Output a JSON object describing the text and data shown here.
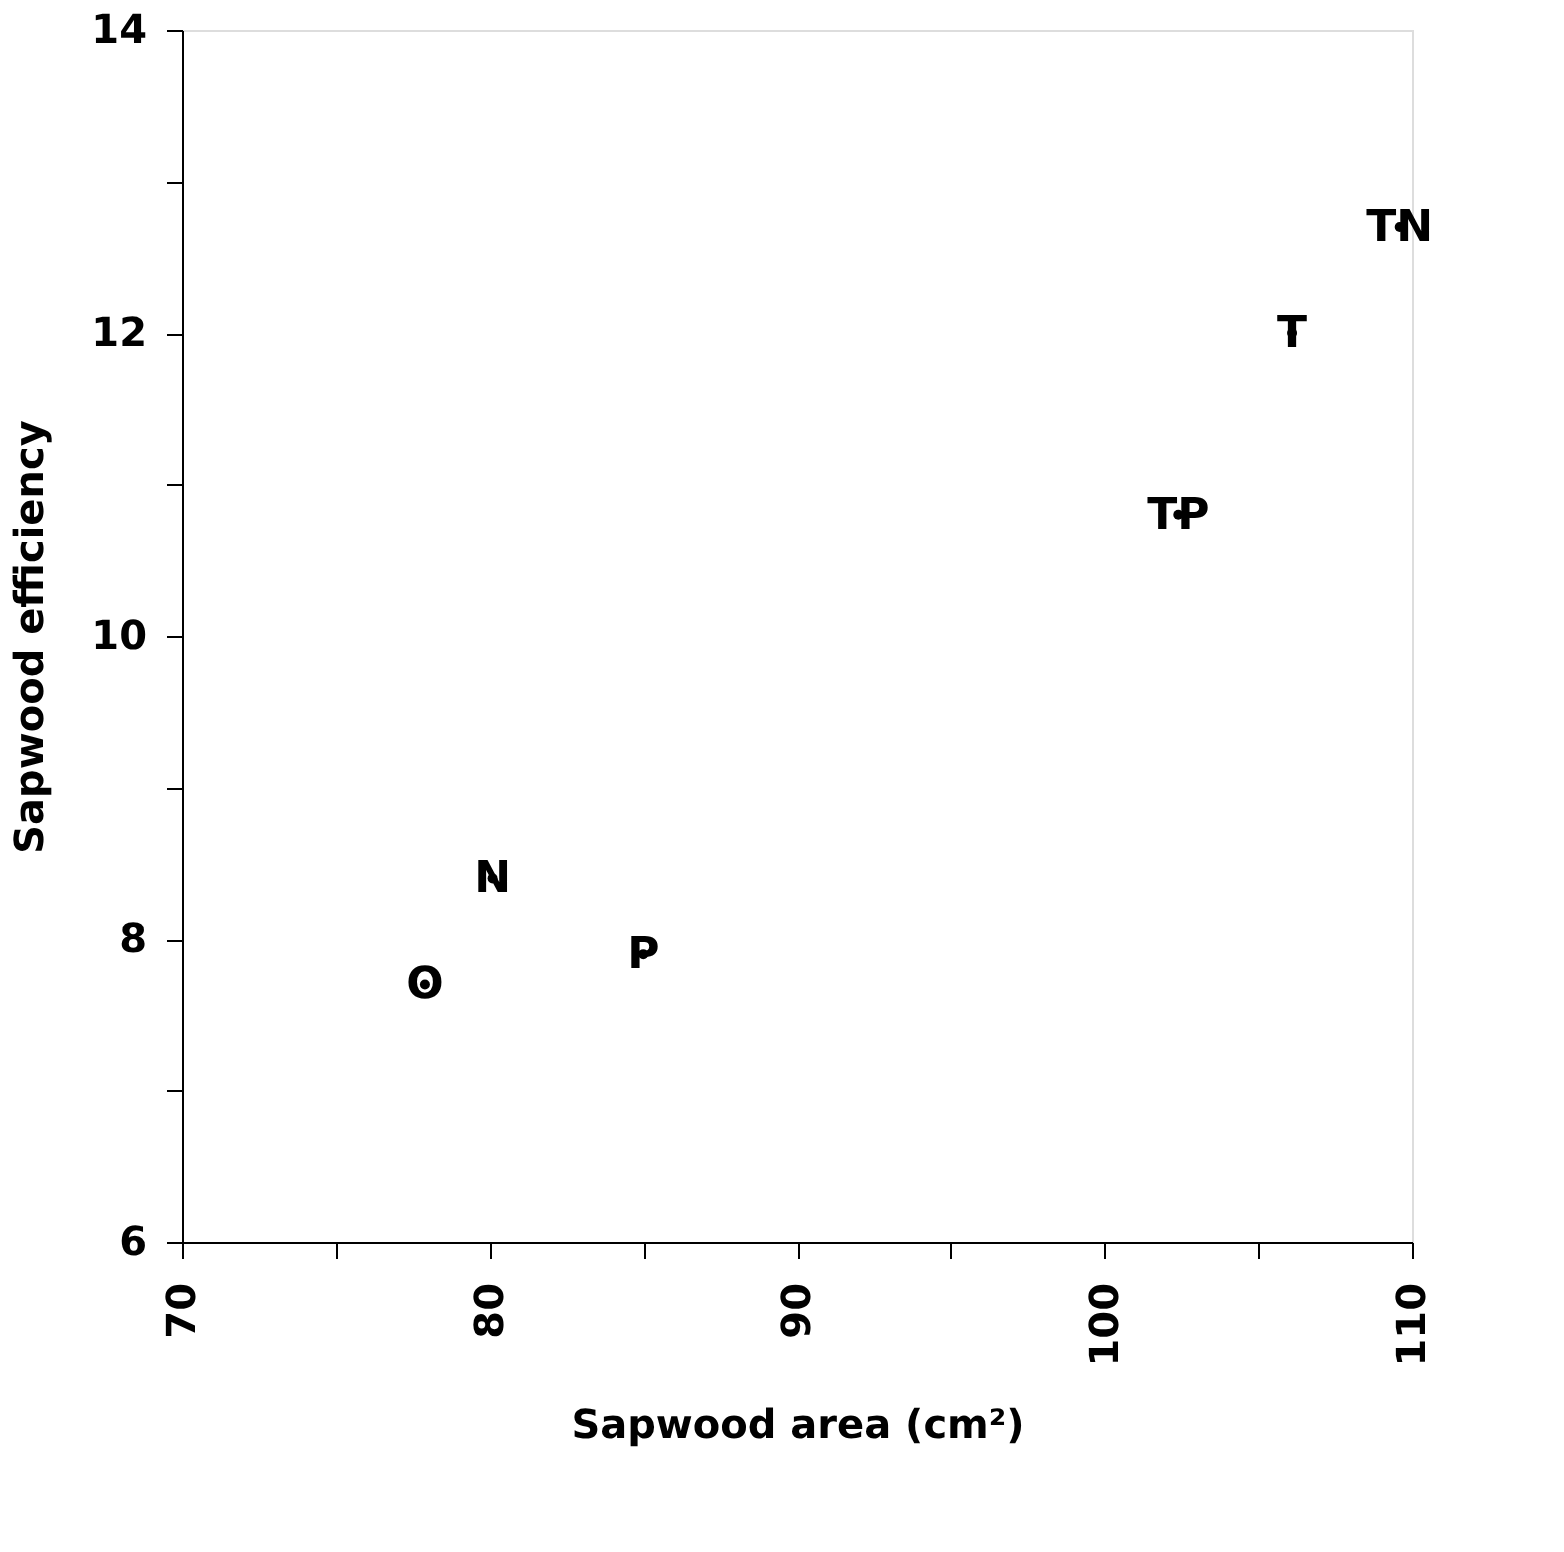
{
  "chart_data": {
    "type": "scatter",
    "xlabel": "Sapwood area (cm²)",
    "ylabel": "Sapwood efficiency",
    "x": [
      77.9,
      80.1,
      85.0,
      102.4,
      106.1,
      109.6
    ],
    "values": [
      7.7,
      8.4,
      7.9,
      10.8,
      12.0,
      12.7
    ],
    "value_labels": [
      "O",
      "N",
      "P",
      "TP",
      "T",
      "TN"
    ],
    "marker": "circle",
    "color": "#000000",
    "xlim": [
      70,
      110
    ],
    "ylim": [
      6,
      14
    ],
    "xticks": [
      70,
      {
        "value": 75,
        "label": null
      },
      80,
      {
        "value": 85,
        "label": null
      },
      90,
      {
        "value": 95,
        "label": null
      },
      100,
      {
        "value": 105,
        "label": null
      },
      110
    ],
    "yticks": [
      6,
      {
        "value": 7,
        "label": null
      },
      8,
      {
        "value": 9,
        "label": null
      },
      10,
      {
        "value": 11,
        "label": null
      },
      12,
      {
        "value": 13,
        "label": null
      },
      14
    ],
    "grid": false
  }
}
